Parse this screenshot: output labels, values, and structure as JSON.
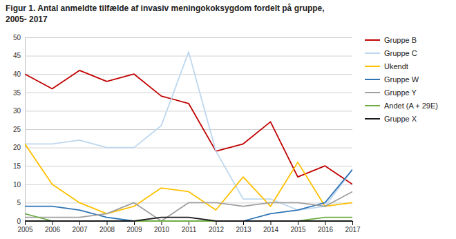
{
  "chart_data": {
    "type": "line",
    "title": "Figur 1. Antal anmeldte tilfælde af invasiv meningokoksygdom fordelt på gruppe,\n2005- 2017",
    "x": [
      2005,
      2006,
      2007,
      2008,
      2009,
      2010,
      2011,
      2012,
      2013,
      2014,
      2015,
      2016,
      2017
    ],
    "series": [
      {
        "name": "Gruppe B",
        "color": "#c00000",
        "values": [
          40,
          36,
          41,
          38,
          40,
          34,
          32,
          19,
          21,
          27,
          12,
          15,
          10
        ]
      },
      {
        "name": "Gruppe C",
        "color": "#bdd7ee",
        "values": [
          21,
          21,
          22,
          20,
          20,
          26,
          46,
          19,
          6,
          6,
          3,
          4,
          14
        ]
      },
      {
        "name": "Ukendt",
        "color": "#ffc000",
        "values": [
          21,
          10,
          5,
          2,
          4,
          9,
          8,
          3,
          12,
          4,
          16,
          4,
          5
        ]
      },
      {
        "name": "Gruppe W",
        "color": "#2e74b5",
        "values": [
          4,
          4,
          3,
          1,
          0,
          0,
          0,
          0,
          0,
          2,
          3,
          5,
          14
        ]
      },
      {
        "name": "Gruppe Y",
        "color": "#a0a0a0",
        "values": [
          1,
          1,
          1,
          2,
          5,
          0,
          5,
          5,
          4,
          5,
          5,
          4,
          8
        ]
      },
      {
        "name": "Andet (A + 29E)",
        "color": "#70ad47",
        "values": [
          2,
          0,
          0,
          0,
          0,
          0,
          0,
          0,
          0,
          0,
          0,
          1,
          1
        ]
      },
      {
        "name": "Gruppe X",
        "color": "#1a1a1a",
        "values": [
          0,
          0,
          0,
          0,
          0,
          1,
          1,
          0,
          0,
          0,
          0,
          0,
          0
        ]
      }
    ],
    "xlim": [
      2005,
      2017
    ],
    "xticks": [
      2005,
      2006,
      2007,
      2008,
      2009,
      2010,
      2011,
      2012,
      2013,
      2014,
      2015,
      2016,
      2017
    ],
    "ylim": [
      0,
      50
    ],
    "yticks": [
      0,
      5,
      10,
      15,
      20,
      25,
      30,
      35,
      40,
      45,
      50
    ],
    "grid": true,
    "legend": "right"
  }
}
